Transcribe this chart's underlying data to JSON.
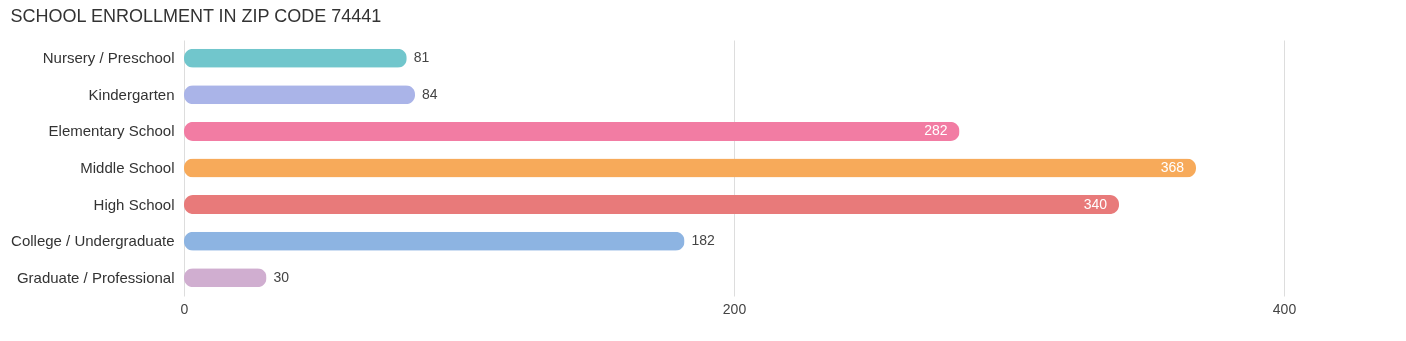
{
  "chart_data": {
    "type": "bar",
    "orientation": "horizontal",
    "title": "SCHOOL ENROLLMENT IN ZIP CODE 74441",
    "categories": [
      "Nursery / Preschool",
      "Kindergarten",
      "Elementary School",
      "Middle School",
      "High School",
      "College / Undergraduate",
      "Graduate / Professional"
    ],
    "values": [
      81,
      84,
      282,
      368,
      340,
      182,
      30
    ],
    "colors": [
      "#71c6cc",
      "#aab4e8",
      "#f27ca3",
      "#f7aa5a",
      "#e87a7a",
      "#8db4e2",
      "#d0aed0"
    ],
    "xlim": [
      0,
      400
    ],
    "xticks": [
      0,
      200,
      400
    ],
    "grid": "x",
    "data_labels": true
  }
}
